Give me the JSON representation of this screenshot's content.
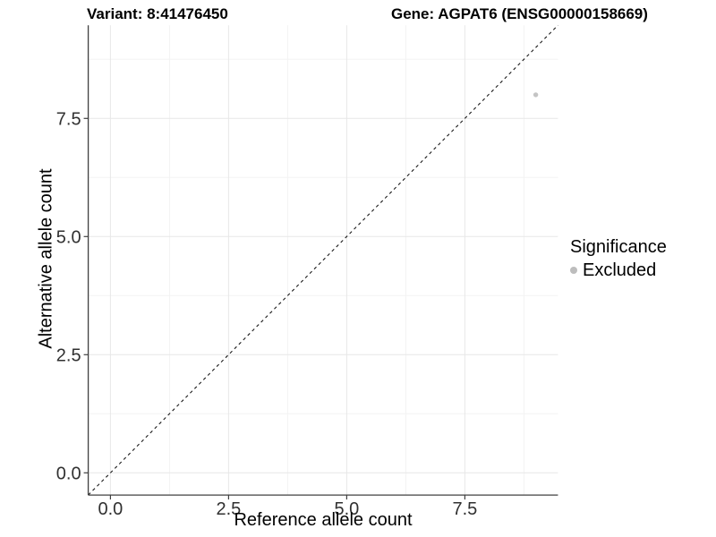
{
  "titles": {
    "variant": "Variant: 8:41476450",
    "gene": "Gene: AGPAT6 (ENSG00000158669)"
  },
  "axes": {
    "x_label": "Reference allele count",
    "y_label": "Alternative allele count"
  },
  "legend": {
    "title": "Significance",
    "items": [
      {
        "label": "Excluded",
        "color": "#bdbdbd"
      }
    ]
  },
  "chart_data": {
    "type": "scatter",
    "title_left": "Variant: 8:41476450",
    "title_right": "Gene: AGPAT6 (ENSG00000158669)",
    "xlabel": "Reference allele count",
    "ylabel": "Alternative allele count",
    "xlim": [
      -0.47,
      9.47
    ],
    "ylim": [
      -0.47,
      9.47
    ],
    "x_ticks": [
      0,
      2.5,
      5,
      7.5
    ],
    "x_tick_labels": [
      "0.0",
      "2.5",
      "5.0",
      "7.5"
    ],
    "y_ticks": [
      0,
      2.5,
      5,
      7.5
    ],
    "y_tick_labels": [
      "0.0",
      "2.5",
      "5.0",
      "7.5"
    ],
    "x_minor_ticks": [
      1.25,
      3.75,
      6.25,
      8.75
    ],
    "y_minor_ticks": [
      1.25,
      3.75,
      6.25,
      8.75
    ],
    "grid": true,
    "points": [
      {
        "x": 9,
        "y": 8,
        "series": "Excluded"
      }
    ],
    "reference_line": {
      "type": "identity y=x",
      "style": "dashed",
      "color": "#1a1a1a"
    },
    "legend_position": "right",
    "colors": {
      "point": "#c4c4c4",
      "grid_major": "#e7e7e7",
      "grid_minor": "#f3f3f3",
      "axis_line": "#404040",
      "tick_text": "#303030"
    }
  }
}
